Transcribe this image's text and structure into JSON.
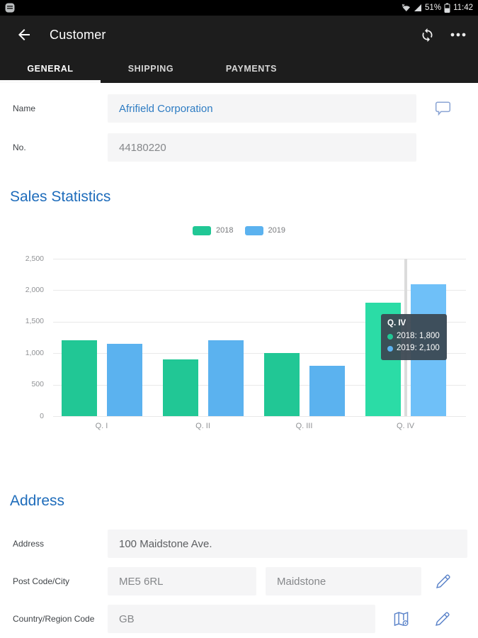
{
  "status_bar": {
    "battery_percent": "51%",
    "time": "11:42"
  },
  "header": {
    "title": "Customer"
  },
  "tabs": [
    {
      "label": "GENERAL",
      "active": true
    },
    {
      "label": "SHIPPING",
      "active": false
    },
    {
      "label": "PAYMENTS",
      "active": false
    }
  ],
  "fields": {
    "name": {
      "label": "Name",
      "value": "Afrifield Corporation"
    },
    "no": {
      "label": "No.",
      "value": "44180220"
    }
  },
  "sections": {
    "sales_title": "Sales Statistics",
    "address_title": "Address"
  },
  "icons": {
    "status": [
      "notification-icon",
      "wifi-off-icon",
      "cellular-signal-icon",
      "battery-icon"
    ],
    "header": [
      "back-arrow-icon",
      "sync-icon",
      "overflow-menu-icon"
    ],
    "rows": [
      "comment-icon",
      "edit-pencil-icon",
      "map-icon"
    ]
  },
  "colors": {
    "accent_blue": "#1e6cbb",
    "series_2018": "#21c795",
    "series_2019": "#5bb2ef",
    "tooltip_bg": "#3c4752",
    "header_bg": "#1d1d1d"
  },
  "chart_data": {
    "type": "bar",
    "title": "Sales Statistics",
    "categories": [
      "Q. I",
      "Q. II",
      "Q. III",
      "Q. IV"
    ],
    "series": [
      {
        "name": "2018",
        "color": "#21c795",
        "highlight": "#2bdca6",
        "values": [
          1200,
          900,
          1000,
          1800
        ]
      },
      {
        "name": "2019",
        "color": "#5bb2ef",
        "highlight": "#6fc0f8",
        "values": [
          1150,
          1200,
          800,
          2100
        ]
      }
    ],
    "xlabel": "",
    "ylabel": "",
    "ylim": [
      0,
      2500
    ],
    "yticks": [
      0,
      500,
      1000,
      1500,
      2000,
      2500
    ],
    "grid": true,
    "legend_position": "top",
    "tooltip": {
      "category": "Q. IV",
      "crosshair_index": 3,
      "rows": [
        {
          "series": "2018",
          "value": "1,800"
        },
        {
          "series": "2019",
          "value": "2,100"
        }
      ]
    }
  },
  "address": {
    "address": {
      "label": "Address",
      "value": "100 Maidstone Ave."
    },
    "postcode_city": {
      "label": "Post Code/City",
      "postcode": "ME5 6RL",
      "city": "Maidstone"
    },
    "country": {
      "label": "Country/Region Code",
      "value": "GB"
    }
  }
}
